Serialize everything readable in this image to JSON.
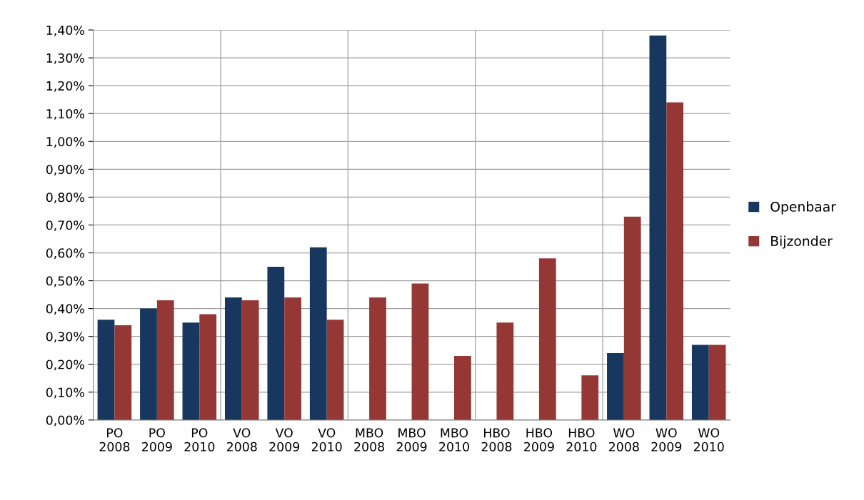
{
  "chart_data": {
    "type": "bar",
    "categories": [
      "PO\n2008",
      "PO\n2009",
      "PO\n2010",
      "VO\n2008",
      "VO\n2009",
      "VO\n2010",
      "MBO\n2008",
      "MBO\n2009",
      "MBO\n2010",
      "HBO\n2008",
      "HBO\n2009",
      "HBO\n2010",
      "WO\n2008",
      "WO\n2009",
      "WO\n2010"
    ],
    "series": [
      {
        "name": "Openbaar",
        "color": "#17375e",
        "values": [
          0.36,
          0.4,
          0.35,
          0.44,
          0.55,
          0.62,
          null,
          null,
          null,
          null,
          null,
          null,
          0.24,
          1.38,
          0.27
        ]
      },
      {
        "name": "Bijzonder",
        "color": "#953735",
        "values": [
          0.34,
          0.43,
          0.38,
          0.43,
          0.44,
          0.36,
          0.44,
          0.49,
          0.23,
          0.35,
          0.58,
          0.16,
          0.73,
          1.14,
          0.27
        ]
      }
    ],
    "ylim": [
      0,
      1.4
    ],
    "yticks": [
      {
        "value": 0,
        "label": "0,00%"
      },
      {
        "value": 0.1,
        "label": "0,10%"
      },
      {
        "value": 0.2,
        "label": "0,20%"
      },
      {
        "value": 0.3,
        "label": "0,30%"
      },
      {
        "value": 0.4,
        "label": "0,40%"
      },
      {
        "value": 0.5,
        "label": "0,50%"
      },
      {
        "value": 0.6,
        "label": "0,60%"
      },
      {
        "value": 0.7,
        "label": "0,70%"
      },
      {
        "value": 0.8,
        "label": "0,80%"
      },
      {
        "value": 0.9,
        "label": "0,90%"
      },
      {
        "value": 1.0,
        "label": "1,00%"
      },
      {
        "value": 1.1,
        "label": "1,10%"
      },
      {
        "value": 1.2,
        "label": "1,20%"
      },
      {
        "value": 1.3,
        "label": "1,30%"
      },
      {
        "value": 1.4,
        "label": "1,40%"
      }
    ],
    "grid": true,
    "legend": "right"
  }
}
